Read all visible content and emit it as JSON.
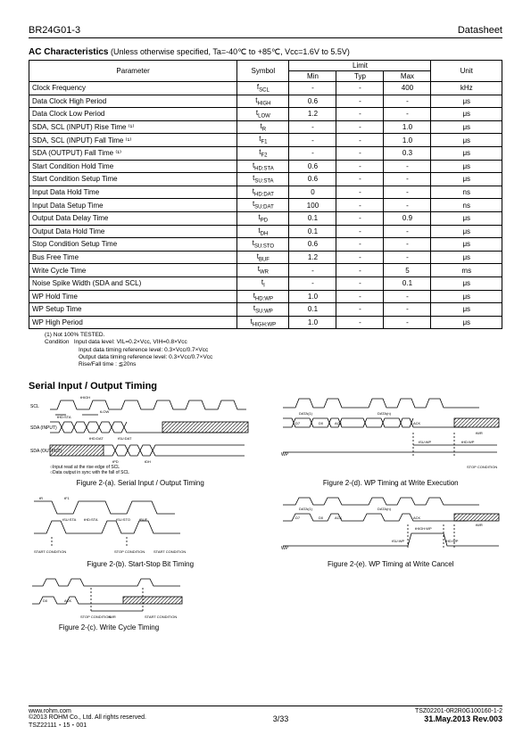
{
  "header": {
    "part": "BR24G01-3",
    "doctype": "Datasheet"
  },
  "ac": {
    "title": "AC Characteristics",
    "condition": " (Unless otherwise specified, Ta=-40℃ to +85℃, Vcc=1.6V to 5.5V)",
    "col_param": "Parameter",
    "col_symbol": "Symbol",
    "col_limit": "Limit",
    "col_min": "Min",
    "col_typ": "Typ",
    "col_max": "Max",
    "col_unit": "Unit",
    "col_widths": {
      "param": "44%",
      "symbol": "11%",
      "min": "10%",
      "typ": "10%",
      "max": "10%",
      "unit": "15%"
    },
    "rows": [
      {
        "p": "Clock Frequency",
        "s": "f",
        "ss": "SCL",
        "min": "-",
        "typ": "-",
        "max": "400",
        "unit": "kHz"
      },
      {
        "p": "Data Clock High Period",
        "s": "t",
        "ss": "HIGH",
        "min": "0.6",
        "typ": "-",
        "max": "-",
        "unit": "μs"
      },
      {
        "p": "Data Clock Low Period",
        "s": "t",
        "ss": "LOW",
        "min": "1.2",
        "typ": "-",
        "max": "-",
        "unit": "μs"
      },
      {
        "p": "SDA, SCL (INPUT) Rise Time ⁽¹⁾",
        "s": "t",
        "ss": "R",
        "min": "-",
        "typ": "-",
        "max": "1.0",
        "unit": "μs"
      },
      {
        "p": "SDA, SCL (INPUT) Fall Time ⁽¹⁾",
        "s": "t",
        "ss": "F1",
        "min": "-",
        "typ": "-",
        "max": "1.0",
        "unit": "μs"
      },
      {
        "p": "SDA (OUTPUT) Fall Time ⁽¹⁾",
        "s": "t",
        "ss": "F2",
        "min": "-",
        "typ": "-",
        "max": "0.3",
        "unit": "μs"
      },
      {
        "p": "Start Condition Hold Time",
        "s": "t",
        "ss": "HD:STA",
        "min": "0.6",
        "typ": "-",
        "max": "-",
        "unit": "μs"
      },
      {
        "p": "Start Condition Setup Time",
        "s": "t",
        "ss": "SU:STA",
        "min": "0.6",
        "typ": "-",
        "max": "-",
        "unit": "μs"
      },
      {
        "p": "Input Data Hold Time",
        "s": "t",
        "ss": "HD:DAT",
        "min": "0",
        "typ": "-",
        "max": "-",
        "unit": "ns"
      },
      {
        "p": "Input Data Setup Time",
        "s": "t",
        "ss": "SU:DAT",
        "min": "100",
        "typ": "-",
        "max": "-",
        "unit": "ns"
      },
      {
        "p": "Output Data Delay Time",
        "s": "t",
        "ss": "PD",
        "min": "0.1",
        "typ": "-",
        "max": "0.9",
        "unit": "μs"
      },
      {
        "p": "Output Data Hold Time",
        "s": "t",
        "ss": "DH",
        "min": "0.1",
        "typ": "-",
        "max": "-",
        "unit": "μs"
      },
      {
        "p": "Stop Condition Setup Time",
        "s": "t",
        "ss": "SU:STO",
        "min": "0.6",
        "typ": "-",
        "max": "-",
        "unit": "μs"
      },
      {
        "p": "Bus Free Time",
        "s": "t",
        "ss": "BUF",
        "min": "1.2",
        "typ": "-",
        "max": "-",
        "unit": "μs"
      },
      {
        "p": "Write Cycle Time",
        "s": "t",
        "ss": "WR",
        "min": "-",
        "typ": "-",
        "max": "5",
        "unit": "ms"
      },
      {
        "p": "Noise Spike Width (SDA and SCL)",
        "s": "t",
        "ss": "I",
        "min": "-",
        "typ": "-",
        "max": "0.1",
        "unit": "μs"
      },
      {
        "p": "WP Hold Time",
        "s": "t",
        "ss": "HD:WP",
        "min": "1.0",
        "typ": "-",
        "max": "-",
        "unit": "μs"
      },
      {
        "p": "WP Setup Time",
        "s": "t",
        "ss": "SU:WP",
        "min": "0.1",
        "typ": "-",
        "max": "-",
        "unit": "μs"
      },
      {
        "p": "WP High Period",
        "s": "t",
        "ss": "HIGH:WP",
        "min": "1.0",
        "typ": "-",
        "max": "-",
        "unit": "μs"
      }
    ],
    "note1": "(1)  Not 100% TESTED.",
    "noteC": "Condition",
    "noteC1": "Input data level: VIL=0.2×Vcc, VIH=0.8×Vcc",
    "noteC2": "Input data timing reference level: 0.3×Vcc/0.7×Vcc",
    "noteC3": "Output data timing reference level: 0.3×Vcc/0.7×Vcc",
    "noteC4": "Rise/Fall time : ≦20ns"
  },
  "timing": {
    "title": "Serial Input / Output Timing",
    "labels": {
      "scl": "SCL",
      "sda_in": "SDA\n(INPUT)",
      "sda_out": "SDA\n(OUTPUT)",
      "wp": "WP",
      "thdsta": "tHD:STA",
      "thigh": "tHIGH",
      "tlow": "tLOW",
      "thddat": "tHD:DAT",
      "tsudat": "tSU:DAT",
      "tpd": "tPD",
      "tdh": "tDH",
      "tr": "tR",
      "tf1": "tF1",
      "tf2": "tF2",
      "tsusta": "tSU:STA",
      "tsusto": "tSU:STO",
      "tbuf": "tBUF",
      "twr": "tWR",
      "tsuwp": "tSU:WP",
      "thdwp": "tHD:WP",
      "thighwp": "tHIGH:WP",
      "ack": "ACK",
      "d0": "D0",
      "d7": "D7",
      "data1": "DATA(1)",
      "datan": "DATA(n)",
      "start": "START CONDITION",
      "stop": "STOP CONDITION",
      "note_in": "○Input read at the rise edge of SCL",
      "note_out": "○Data output in sync with the fall of SCL"
    },
    "cap_a": "Figure 2-(a). Serial Input / Output Timing",
    "cap_b": "Figure 2-(b). Start-Stop Bit Timing",
    "cap_c": "Figure 2-(c). Write Cycle Timing",
    "cap_d": "Figure 2-(d). WP Timing at Write Execution",
    "cap_e": "Figure 2-(e). WP Timing at Write Cancel"
  },
  "footer": {
    "url": "www.rohm.com",
    "copy": "©2013 ROHM Co., Ltd. All rights reserved.",
    "tsz_small": "TSZ22111・15・001",
    "page": "3/33",
    "tsz": "TSZ02201-0R2R0G100160-1-2",
    "date": "31.May.2013 Rev.003"
  },
  "style": {
    "stroke": "#000000",
    "hatch": "#000000",
    "bg": "#ffffff",
    "font_small": 5,
    "font_tiny": 4
  }
}
